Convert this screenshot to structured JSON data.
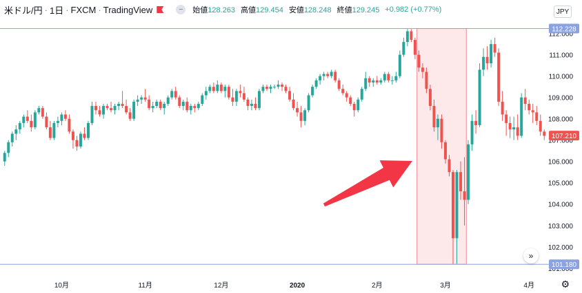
{
  "header": {
    "symbol": "米ドル/円",
    "interval": "1日",
    "source": "FXCM",
    "brand": "TradingView",
    "ohlc": [
      {
        "label": "始値",
        "value": "128.263"
      },
      {
        "label": "高値",
        "value": "129.454"
      },
      {
        "label": "安値",
        "value": "128.248"
      },
      {
        "label": "終値",
        "value": "129.245"
      }
    ],
    "change": "+0.982 (+0.77%)",
    "currency": "JPY",
    "collapse_icon": "minus-icon",
    "flag_icon": "flag-icon"
  },
  "controls": {
    "scroll_icon": "double-chevron-right-icon",
    "scroll_label": "»",
    "settings_icon": "gear-icon",
    "settings_label": "⚙"
  },
  "colors": {
    "up": "#26a69a",
    "down": "#ef5350",
    "line": "#8aa3e0",
    "price_tag": "#ef5350",
    "highlight_fill": "#fde8ea",
    "highlight_border": "#f48a94",
    "arrow": "#f23645"
  },
  "chart_data": {
    "type": "candlestick",
    "ylim": [
      100.8,
      112.6
    ],
    "y_ticks": [
      101.0,
      102.0,
      103.0,
      104.0,
      105.0,
      106.0,
      107.0,
      108.0,
      109.0,
      110.0,
      111.0,
      112.0
    ],
    "x_labels": [
      {
        "label": "10月",
        "index": 15
      },
      {
        "label": "11月",
        "index": 37
      },
      {
        "label": "12月",
        "index": 57
      },
      {
        "label": "2020",
        "index": 77
      },
      {
        "label": "2月",
        "index": 98
      },
      {
        "label": "3月",
        "index": 116
      },
      {
        "label": "4月",
        "index": 138
      }
    ],
    "horizontal_lines": [
      {
        "value": 112.228,
        "label": "112.228"
      },
      {
        "value": 101.18,
        "label": "101.180"
      }
    ],
    "last_price": {
      "value": 107.21,
      "label": "107.210"
    },
    "highlight_range": {
      "from_index": 109,
      "to_index": 121
    },
    "annotation": "arrow pointing to highlighted range",
    "candles": [
      [
        106.0,
        106.5,
        105.8,
        106.4
      ],
      [
        106.4,
        107.0,
        106.2,
        106.9
      ],
      [
        106.9,
        107.4,
        106.7,
        107.3
      ],
      [
        107.3,
        107.7,
        107.0,
        107.5
      ],
      [
        107.5,
        107.9,
        107.3,
        107.8
      ],
      [
        107.8,
        108.2,
        107.6,
        108.1
      ],
      [
        108.1,
        108.4,
        107.8,
        107.9
      ],
      [
        107.9,
        108.2,
        107.4,
        107.6
      ],
      [
        107.6,
        108.4,
        107.5,
        108.3
      ],
      [
        108.3,
        108.6,
        108.2,
        108.5
      ],
      [
        108.5,
        108.6,
        108.0,
        108.1
      ],
      [
        108.1,
        108.3,
        107.5,
        107.6
      ],
      [
        107.6,
        107.9,
        107.0,
        107.1
      ],
      [
        107.1,
        107.9,
        107.0,
        107.8
      ],
      [
        107.8,
        108.1,
        107.6,
        107.9
      ],
      [
        107.9,
        108.3,
        107.7,
        108.2
      ],
      [
        108.2,
        108.4,
        107.9,
        108.0
      ],
      [
        108.0,
        108.2,
        107.3,
        107.4
      ],
      [
        107.4,
        107.5,
        106.6,
        107.0
      ],
      [
        107.0,
        107.2,
        106.5,
        106.7
      ],
      [
        106.7,
        107.4,
        106.6,
        107.3
      ],
      [
        107.3,
        107.6,
        107.0,
        107.1
      ],
      [
        107.1,
        107.9,
        107.0,
        107.8
      ],
      [
        107.8,
        108.8,
        107.7,
        108.6
      ],
      [
        108.6,
        108.8,
        108.2,
        108.4
      ],
      [
        108.4,
        108.6,
        108.1,
        108.2
      ],
      [
        108.2,
        108.7,
        108.0,
        108.6
      ],
      [
        108.6,
        108.7,
        108.4,
        108.5
      ],
      [
        108.5,
        108.8,
        108.3,
        108.4
      ],
      [
        108.4,
        108.7,
        108.2,
        108.6
      ],
      [
        108.6,
        108.8,
        108.4,
        108.7
      ],
      [
        108.7,
        109.3,
        108.5,
        108.6
      ],
      [
        108.6,
        108.9,
        108.2,
        108.3
      ],
      [
        108.3,
        108.5,
        107.9,
        108.0
      ],
      [
        108.0,
        108.9,
        107.9,
        108.8
      ],
      [
        108.8,
        109.1,
        108.6,
        108.9
      ],
      [
        108.9,
        109.1,
        108.7,
        109.0
      ],
      [
        109.0,
        109.4,
        108.8,
        108.9
      ],
      [
        108.9,
        109.1,
        108.4,
        108.5
      ],
      [
        108.5,
        108.8,
        108.3,
        108.6
      ],
      [
        108.6,
        108.9,
        108.5,
        108.8
      ],
      [
        108.8,
        108.9,
        108.4,
        108.5
      ],
      [
        108.5,
        108.8,
        108.2,
        108.7
      ],
      [
        108.7,
        109.1,
        108.6,
        109.0
      ],
      [
        109.0,
        109.4,
        108.9,
        109.3
      ],
      [
        109.3,
        109.5,
        108.9,
        109.0
      ],
      [
        109.0,
        109.1,
        108.5,
        108.6
      ],
      [
        108.6,
        108.9,
        108.4,
        108.8
      ],
      [
        108.8,
        109.0,
        108.3,
        108.4
      ],
      [
        108.4,
        108.7,
        108.2,
        108.6
      ],
      [
        108.6,
        108.7,
        108.3,
        108.5
      ],
      [
        108.5,
        108.8,
        108.4,
        108.7
      ],
      [
        108.7,
        109.2,
        108.6,
        109.1
      ],
      [
        109.1,
        109.5,
        108.9,
        109.3
      ],
      [
        109.3,
        109.6,
        109.2,
        109.5
      ],
      [
        109.5,
        109.7,
        109.2,
        109.3
      ],
      [
        109.3,
        109.8,
        109.2,
        109.6
      ],
      [
        109.6,
        109.7,
        109.2,
        109.3
      ],
      [
        109.3,
        109.6,
        109.0,
        109.5
      ],
      [
        109.5,
        109.6,
        108.9,
        109.0
      ],
      [
        109.0,
        109.4,
        108.6,
        108.8
      ],
      [
        108.8,
        109.4,
        108.6,
        109.3
      ],
      [
        109.3,
        109.6,
        109.0,
        109.2
      ],
      [
        109.2,
        109.5,
        108.8,
        108.9
      ],
      [
        108.9,
        109.0,
        108.4,
        108.6
      ],
      [
        108.6,
        108.9,
        108.4,
        108.7
      ],
      [
        108.7,
        109.0,
        108.4,
        108.5
      ],
      [
        108.5,
        109.4,
        108.4,
        109.3
      ],
      [
        109.3,
        109.6,
        109.2,
        109.5
      ],
      [
        109.5,
        109.6,
        109.3,
        109.4
      ],
      [
        109.4,
        109.6,
        109.2,
        109.5
      ],
      [
        109.5,
        109.6,
        109.4,
        109.5
      ],
      [
        109.5,
        109.8,
        109.4,
        109.6
      ],
      [
        109.6,
        109.7,
        109.3,
        109.5
      ],
      [
        109.5,
        109.6,
        109.2,
        109.3
      ],
      [
        109.3,
        109.5,
        108.8,
        108.9
      ],
      [
        108.9,
        109.2,
        108.4,
        108.5
      ],
      [
        108.5,
        108.8,
        108.1,
        108.3
      ],
      [
        108.3,
        108.6,
        107.6,
        107.9
      ],
      [
        107.9,
        108.5,
        107.7,
        108.4
      ],
      [
        108.4,
        109.2,
        108.3,
        109.1
      ],
      [
        109.1,
        109.6,
        109.0,
        109.5
      ],
      [
        109.5,
        109.9,
        109.4,
        109.8
      ],
      [
        109.8,
        110.1,
        109.6,
        110.0
      ],
      [
        110.0,
        110.2,
        109.8,
        110.1
      ],
      [
        110.1,
        110.2,
        109.9,
        110.0
      ],
      [
        110.0,
        110.3,
        109.9,
        110.2
      ],
      [
        110.2,
        110.3,
        109.7,
        109.8
      ],
      [
        109.8,
        109.9,
        109.3,
        109.4
      ],
      [
        109.4,
        109.6,
        109.1,
        109.2
      ],
      [
        109.2,
        109.3,
        108.8,
        109.0
      ],
      [
        109.0,
        109.1,
        108.6,
        108.7
      ],
      [
        108.7,
        108.8,
        108.1,
        108.4
      ],
      [
        108.4,
        109.0,
        108.3,
        108.9
      ],
      [
        108.9,
        109.5,
        108.8,
        109.4
      ],
      [
        109.4,
        110.2,
        109.3,
        109.9
      ],
      [
        109.9,
        110.0,
        109.5,
        109.7
      ],
      [
        109.7,
        109.9,
        109.5,
        109.8
      ],
      [
        109.8,
        110.0,
        109.6,
        109.7
      ],
      [
        109.7,
        109.9,
        109.6,
        109.8
      ],
      [
        109.8,
        110.2,
        109.7,
        110.1
      ],
      [
        110.1,
        110.2,
        109.7,
        109.8
      ],
      [
        109.8,
        110.0,
        109.6,
        109.8
      ],
      [
        109.8,
        110.2,
        109.7,
        110.0
      ],
      [
        110.0,
        111.2,
        109.9,
        111.0
      ],
      [
        111.0,
        111.8,
        110.9,
        111.6
      ],
      [
        111.6,
        112.2,
        111.4,
        112.1
      ],
      [
        112.1,
        112.2,
        111.6,
        111.7
      ],
      [
        111.7,
        111.8,
        110.8,
        111.0
      ],
      [
        111.0,
        111.2,
        110.2,
        110.4
      ],
      [
        110.4,
        110.6,
        109.9,
        110.2
      ],
      [
        110.2,
        110.4,
        109.2,
        109.4
      ],
      [
        109.4,
        109.6,
        108.4,
        108.6
      ],
      [
        108.6,
        108.9,
        107.4,
        107.6
      ],
      [
        107.6,
        108.2,
        107.0,
        108.0
      ],
      [
        108.0,
        108.2,
        106.6,
        106.9
      ],
      [
        106.9,
        107.0,
        105.9,
        106.1
      ],
      [
        106.1,
        106.3,
        105.3,
        105.5
      ],
      [
        105.5,
        105.6,
        101.2,
        102.4
      ],
      [
        102.4,
        105.6,
        101.2,
        105.5
      ],
      [
        105.5,
        106.0,
        104.2,
        104.6
      ],
      [
        104.6,
        106.2,
        103.0,
        104.2
      ],
      [
        104.2,
        107.0,
        104.0,
        106.8
      ],
      [
        106.8,
        108.2,
        106.5,
        107.9
      ],
      [
        107.9,
        108.4,
        107.3,
        107.7
      ],
      [
        107.7,
        110.6,
        107.6,
        110.3
      ],
      [
        110.3,
        111.3,
        110.0,
        110.9
      ],
      [
        110.9,
        111.4,
        110.3,
        110.6
      ],
      [
        110.6,
        111.7,
        110.4,
        111.5
      ],
      [
        111.5,
        111.8,
        110.9,
        111.1
      ],
      [
        111.1,
        111.3,
        108.6,
        108.8
      ],
      [
        108.8,
        109.3,
        107.9,
        108.2
      ],
      [
        108.2,
        108.4,
        107.2,
        107.8
      ],
      [
        107.8,
        108.1,
        107.1,
        107.5
      ],
      [
        107.5,
        108.1,
        107.0,
        107.6
      ],
      [
        107.6,
        108.2,
        107.0,
        107.2
      ],
      [
        107.2,
        109.2,
        107.1,
        109.0
      ],
      [
        109.0,
        109.4,
        108.4,
        108.7
      ],
      [
        108.7,
        108.9,
        108.2,
        108.4
      ],
      [
        108.4,
        108.7,
        107.8,
        108.3
      ],
      [
        108.3,
        108.6,
        107.7,
        107.9
      ],
      [
        107.9,
        108.2,
        107.2,
        107.4
      ],
      [
        107.4,
        107.5,
        107.0,
        107.2
      ]
    ]
  }
}
